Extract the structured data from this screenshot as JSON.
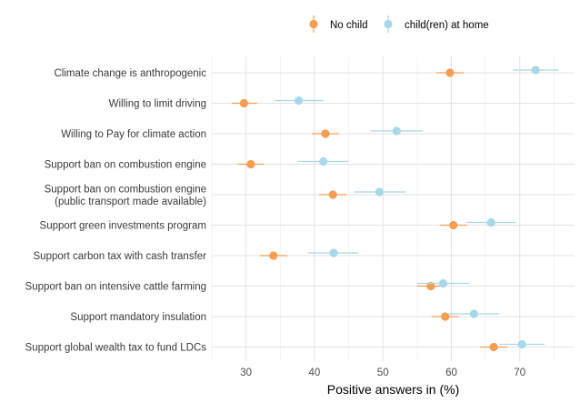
{
  "chart_data": {
    "type": "scatter",
    "subtype": "dot-and-whisker",
    "xlabel": "Positive answers in (%)",
    "ylabel": "",
    "xlim": [
      25,
      78
    ],
    "x_ticks": [
      30,
      40,
      50,
      60,
      70
    ],
    "grid": true,
    "legend_position": "top",
    "categories": [
      [
        "Climate change is anthropogenic"
      ],
      [
        "Willing to limit driving"
      ],
      [
        "Willing to Pay for climate action"
      ],
      [
        "Support ban on combustion engine"
      ],
      [
        "Support ban on combustion engine",
        "(public transport made available)"
      ],
      [
        "Support green investments program"
      ],
      [
        "Support carbon tax with cash transfer"
      ],
      [
        "Support ban on intensive cattle farming"
      ],
      [
        "Support mandatory insulation"
      ],
      [
        "Support global wealth tax to fund LDCs"
      ]
    ],
    "series": [
      {
        "name": "No child",
        "color": "#F79D50",
        "values": [
          59.8,
          29.7,
          41.6,
          30.7,
          42.7,
          60.3,
          34.0,
          57.0,
          59.1,
          66.2
        ],
        "ci_low": [
          57.8,
          27.9,
          39.6,
          28.8,
          40.7,
          58.3,
          32.0,
          55.0,
          57.1,
          64.2
        ],
        "ci_high": [
          61.8,
          31.6,
          43.6,
          32.6,
          44.7,
          62.3,
          36.0,
          59.0,
          61.1,
          68.2
        ]
      },
      {
        "name": "child(ren) at home",
        "color": "#A8D8E8",
        "values": [
          72.3,
          37.7,
          52.0,
          41.3,
          49.5,
          65.8,
          42.8,
          58.8,
          63.3,
          70.3
        ],
        "ci_low": [
          69.0,
          34.2,
          48.2,
          37.6,
          45.8,
          62.2,
          39.1,
          55.0,
          59.6,
          67.0
        ],
        "ci_high": [
          75.6,
          41.3,
          55.8,
          45.0,
          53.3,
          69.4,
          46.4,
          62.6,
          67.0,
          73.6
        ]
      }
    ]
  }
}
